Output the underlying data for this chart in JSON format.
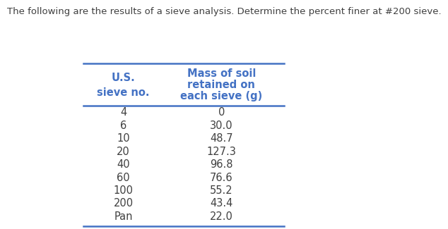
{
  "title": "The following are the results of a sieve analysis. Determine the percent finer at #200 sieve.",
  "title_fontsize": 9.5,
  "col1_header_line1": "U.S.",
  "col1_header_line2": "sieve no.",
  "col2_header_line1": "Mass of soil",
  "col2_header_line2": "retained on",
  "col2_header_line3": "each sieve (g)",
  "header_color": "#4472C4",
  "data_color": "#404040",
  "sieve_nos": [
    "4",
    "6",
    "10",
    "20",
    "40",
    "60",
    "100",
    "200",
    "Pan"
  ],
  "masses": [
    "0",
    "30.0",
    "48.7",
    "127.3",
    "96.8",
    "76.6",
    "55.2",
    "43.4",
    "22.0"
  ],
  "background_color": "#ffffff",
  "line_color": "#4472C4",
  "data_fontsize": 10.5,
  "header_fontsize": 10.5
}
